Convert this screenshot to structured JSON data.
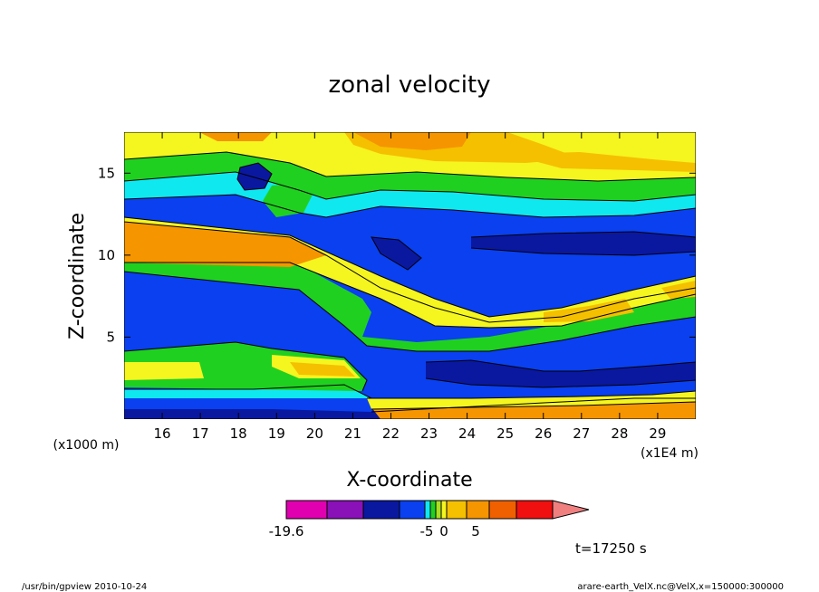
{
  "chart_data": {
    "type": "heatmap",
    "title": "zonal velocity",
    "xlabel": "X-coordinate",
    "ylabel": "Z-coordinate",
    "y_unit_label": "(x1000 m)",
    "x_unit_label": "(x1E4 m)",
    "xlim": [
      15.0,
      30.0
    ],
    "ylim": [
      0.0,
      17.5
    ],
    "x_ticks": [
      16,
      17,
      18,
      19,
      20,
      21,
      22,
      23,
      24,
      25,
      26,
      27,
      28,
      29
    ],
    "y_ticks": [
      5,
      10,
      15
    ],
    "colorbar": {
      "colors": [
        "#e000b0",
        "#8a10b8",
        "#0a18a0",
        "#0a40f0",
        "#10e8f0",
        "#20d020",
        "#a8e020",
        "#f5f520",
        "#f5c000",
        "#f59500",
        "#f06000",
        "#f01010",
        "#f08080"
      ],
      "tick_labels": [
        "-19.6",
        "-5",
        "0",
        "5"
      ],
      "extend": "max"
    },
    "annotation": "t=17250 s"
  },
  "footer": {
    "left": "/usr/bin/gpview   2010-10-24",
    "right": "arare-earth_VelX.nc@VelX,x=150000:300000"
  }
}
